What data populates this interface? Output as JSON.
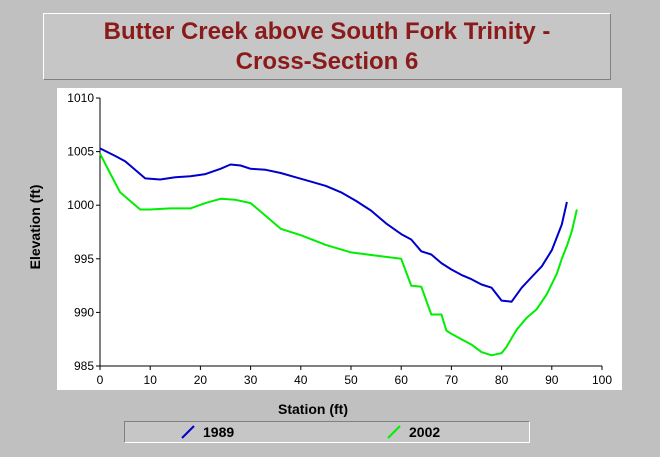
{
  "title": {
    "line1": "Butter Creek above South Fork Trinity -",
    "line2": "Cross-Section 6"
  },
  "colors": {
    "title": "#8b1a1a",
    "plot_background": "#ffffff",
    "series_1989": "#0000cc",
    "series_2002": "#00ee00"
  },
  "chart_data": {
    "type": "line",
    "title": "Butter Creek above South Fork Trinity - Cross-Section 6",
    "xlabel": "Station (ft)",
    "ylabel": "Elevation (ft)",
    "xlim": [
      0,
      100
    ],
    "ylim": [
      985,
      1010
    ],
    "xticks": [
      "0",
      "10",
      "20",
      "30",
      "40",
      "50",
      "60",
      "70",
      "80",
      "90",
      "100"
    ],
    "yticks": [
      "985",
      "990",
      "995",
      "1000",
      "1005",
      "1010"
    ],
    "grid": false,
    "legend_position": "bottom",
    "series": [
      {
        "name": "1989",
        "color": "#0000cc",
        "x": [
          0,
          3,
          5,
          7,
          9,
          12,
          15,
          18,
          21,
          24,
          26,
          28,
          30,
          33,
          36,
          39,
          42,
          45,
          48,
          51,
          54,
          57,
          60,
          62,
          64,
          66,
          68,
          70,
          72,
          74,
          76,
          78,
          80,
          82,
          84,
          86,
          88,
          90,
          92,
          93
        ],
        "y": [
          1005.3,
          1004.6,
          1004.1,
          1003.3,
          1002.5,
          1002.4,
          1002.6,
          1002.7,
          1002.9,
          1003.4,
          1003.8,
          1003.7,
          1003.4,
          1003.3,
          1003.0,
          1002.6,
          1002.2,
          1001.8,
          1001.2,
          1000.4,
          999.5,
          998.3,
          997.3,
          996.8,
          995.7,
          995.4,
          994.6,
          994.0,
          993.5,
          993.1,
          992.6,
          992.3,
          991.1,
          991.0,
          992.3,
          993.3,
          994.3,
          995.8,
          998.2,
          1000.3
        ]
      },
      {
        "name": "2002",
        "color": "#00ee00",
        "x": [
          0,
          2,
          4,
          6,
          8,
          10,
          14,
          18,
          21,
          24,
          27,
          30,
          33,
          36,
          40,
          45,
          50,
          55,
          60,
          62,
          64,
          66,
          68,
          69,
          70,
          72,
          74,
          76,
          78,
          80,
          81,
          83,
          85,
          87,
          89,
          91,
          92,
          93,
          94,
          95
        ],
        "y": [
          1004.8,
          1003.0,
          1001.2,
          1000.4,
          999.6,
          999.6,
          999.7,
          999.7,
          1000.2,
          1000.6,
          1000.5,
          1000.2,
          999.0,
          997.8,
          997.2,
          996.3,
          995.6,
          995.3,
          995.0,
          992.5,
          992.4,
          989.8,
          989.8,
          988.3,
          988.0,
          987.5,
          987.0,
          986.3,
          986.0,
          986.2,
          986.8,
          988.4,
          989.5,
          990.3,
          991.7,
          993.6,
          995.0,
          996.2,
          997.6,
          999.6
        ]
      }
    ]
  }
}
